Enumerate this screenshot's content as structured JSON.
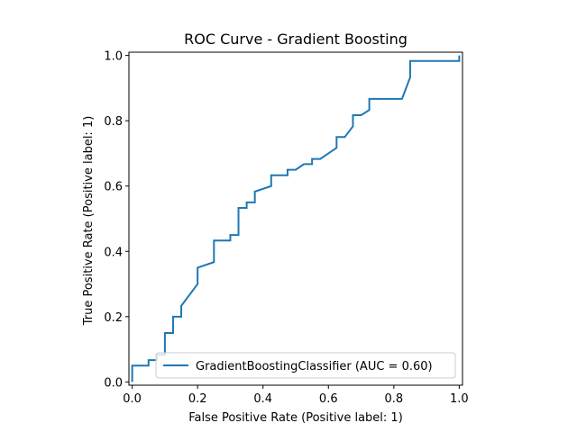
{
  "chart_data": {
    "type": "line",
    "title": "ROC Curve - Gradient Boosting",
    "xlabel": "False Positive Rate (Positive label: 1)",
    "ylabel": "True Positive Rate (Positive label: 1)",
    "xlim": [
      -0.01,
      1.01
    ],
    "ylim": [
      -0.01,
      1.01
    ],
    "x_ticks": [
      0.0,
      0.2,
      0.4,
      0.6,
      0.8,
      1.0
    ],
    "x_tick_labels": [
      "0.0",
      "0.2",
      "0.4",
      "0.6",
      "0.8",
      "1.0"
    ],
    "y_ticks": [
      0.0,
      0.2,
      0.4,
      0.6,
      0.8,
      1.0
    ],
    "y_tick_labels": [
      "0.0",
      "0.2",
      "0.4",
      "0.6",
      "0.8",
      "1.0"
    ],
    "grid": false,
    "legend": {
      "placement": "lower-right",
      "entries": [
        "GradientBoostingClassifier (AUC = 0.60)"
      ]
    },
    "series": [
      {
        "name": "GradientBoostingClassifier (AUC = 0.60)",
        "color": "#1f77b4",
        "x": [
          0.0,
          0.0,
          0.05,
          0.05,
          0.075,
          0.075,
          0.1,
          0.1,
          0.125,
          0.125,
          0.15,
          0.15,
          0.2,
          0.2,
          0.25,
          0.25,
          0.3,
          0.3,
          0.325,
          0.325,
          0.35,
          0.35,
          0.375,
          0.375,
          0.425,
          0.425,
          0.475,
          0.475,
          0.5,
          0.525,
          0.55,
          0.55,
          0.575,
          0.625,
          0.625,
          0.65,
          0.675,
          0.675,
          0.7,
          0.725,
          0.725,
          0.825,
          0.85,
          0.85,
          1.0,
          1.0
        ],
        "y": [
          0.0,
          0.05,
          0.05,
          0.067,
          0.067,
          0.083,
          0.083,
          0.15,
          0.15,
          0.2,
          0.2,
          0.233,
          0.3,
          0.35,
          0.367,
          0.433,
          0.433,
          0.45,
          0.45,
          0.533,
          0.533,
          0.55,
          0.55,
          0.583,
          0.6,
          0.633,
          0.633,
          0.65,
          0.65,
          0.667,
          0.667,
          0.683,
          0.683,
          0.717,
          0.75,
          0.75,
          0.783,
          0.817,
          0.817,
          0.833,
          0.867,
          0.867,
          0.933,
          0.983,
          0.983,
          1.0
        ]
      }
    ]
  }
}
